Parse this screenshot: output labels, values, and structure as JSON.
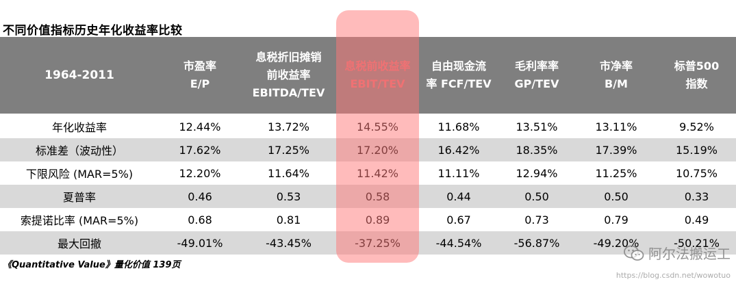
{
  "title": "不同价值指标历史年化收益率比较",
  "header": {
    "period": "1964-2011",
    "columns": [
      "市盈率\nE/P",
      "息税折旧摊销\n前收益率\nEBITDA/TEV",
      "息税前收益率\nEBIT/TEV",
      "自由现金流\n率 FCF/TEV",
      "毛利率率\nGP/TEV",
      "市净率\nB/M",
      "标普500\n指数"
    ]
  },
  "rows": [
    {
      "label": "年化收益率",
      "values": [
        "12.44%",
        "13.72%",
        "14.55%",
        "11.68%",
        "13.51%",
        "13.11%",
        "9.52%"
      ]
    },
    {
      "label": "标准差（波动性）",
      "values": [
        "17.62%",
        "17.25%",
        "17.20%",
        "16.42%",
        "18.35%",
        "17.39%",
        "15.19%"
      ]
    },
    {
      "label": "下限风险 (MAR=5%)",
      "values": [
        "12.20%",
        "11.64%",
        "11.42%",
        "11.11%",
        "12.94%",
        "11.25%",
        "10.75%"
      ]
    },
    {
      "label": "夏普率",
      "values": [
        "0.46",
        "0.53",
        "0.58",
        "0.44",
        "0.50",
        "0.50",
        "0.33"
      ]
    },
    {
      "label": "索提诺比率 (MAR=5%)",
      "values": [
        "0.68",
        "0.81",
        "0.89",
        "0.67",
        "0.73",
        "0.79",
        "0.49"
      ]
    },
    {
      "label": "最大回撤",
      "values": [
        "-49.01%",
        "-43.45%",
        "-37.25%",
        "-44.54%",
        "-56.87%",
        "-49.20%",
        "-50.21%"
      ]
    }
  ],
  "source": "《Quantitative Value》量化价值 139页",
  "watermark": {
    "text": "阿尔法搬运工",
    "url": "https://blog.csdn.net/wowotuo",
    "icon": "wechat-icon"
  },
  "colors": {
    "header_bg": "#7f7f7f",
    "shade": "#d9d9d9",
    "highlight": "#ff7878",
    "highlight_text": "#e06a6e"
  }
}
